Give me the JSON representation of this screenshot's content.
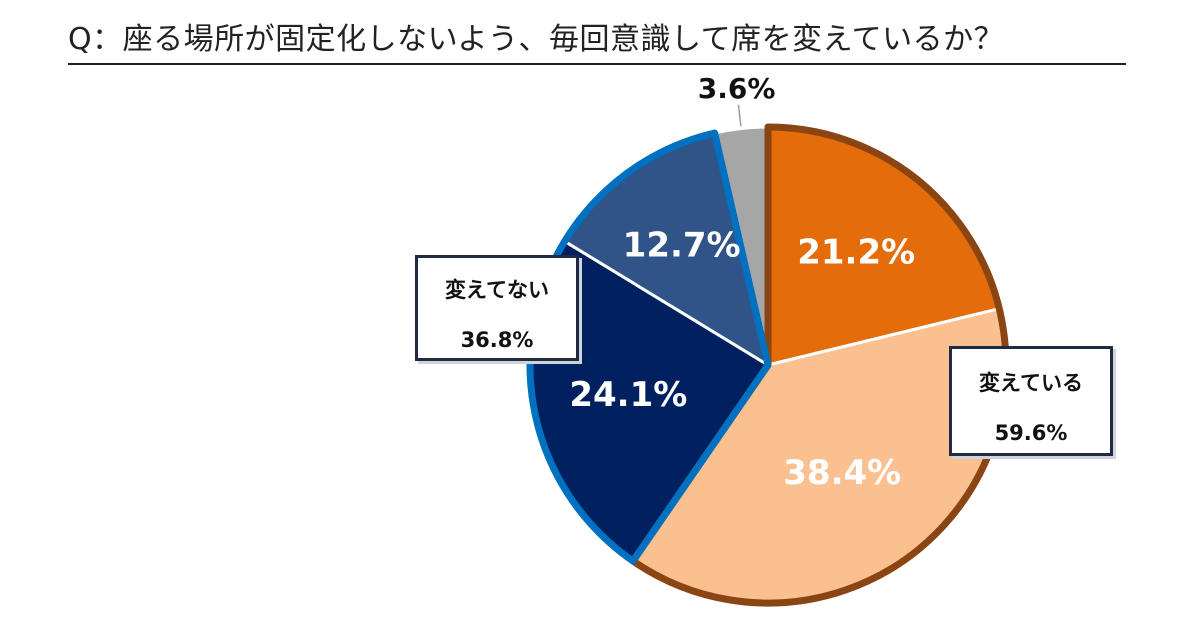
{
  "title": "Q：座る場所が固定化しないよう、毎回意識して席を変えているか？",
  "chart_data": {
    "type": "pie",
    "slices": [
      {
        "label": "21.2%",
        "value": 21.2,
        "color": "#e46c0a",
        "stroke": "#8b4513"
      },
      {
        "label": "38.4%",
        "value": 38.4,
        "color": "#fac090",
        "stroke": "#8b4513"
      },
      {
        "label": "24.1%",
        "value": 24.1,
        "color": "#002060",
        "stroke": "#0070c0"
      },
      {
        "label": "12.7%",
        "value": 12.7,
        "color": "#305487",
        "stroke": "#0070c0"
      },
      {
        "label": "3.6%",
        "value": 3.6,
        "color": "#a6a6a6",
        "stroke": "#ffffff"
      }
    ],
    "groups": [
      {
        "label": "変えている",
        "total": "59.6%"
      },
      {
        "label": "変えてない",
        "total": "36.8%"
      }
    ]
  }
}
